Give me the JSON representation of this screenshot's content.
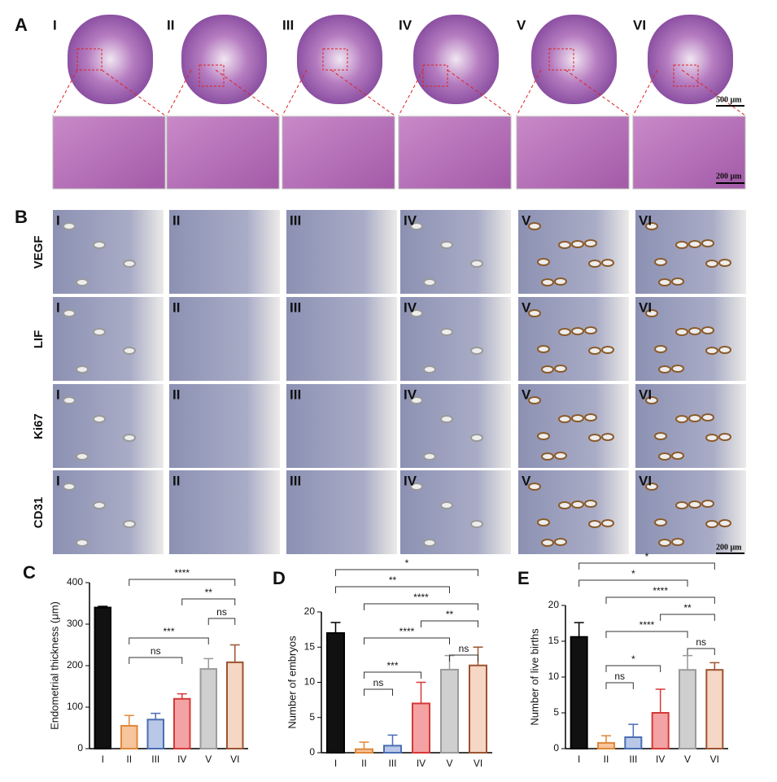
{
  "panel_a": {
    "label": "A",
    "groups": [
      "I",
      "II",
      "III",
      "IV",
      "V",
      "VI"
    ],
    "scale_top": "500 μm",
    "scale_bottom": "200 μm"
  },
  "panel_b": {
    "label": "B",
    "groups": [
      "I",
      "II",
      "III",
      "IV",
      "V",
      "VI"
    ],
    "stains": [
      "VEGF",
      "LIF",
      "Ki67",
      "CD31"
    ],
    "scale": "200 μm"
  },
  "chart_data": [
    {
      "type": "bar",
      "label": "C",
      "ylabel": "Endometrial thickness (μm)",
      "categories": [
        "I",
        "II",
        "III",
        "IV",
        "V",
        "VI"
      ],
      "values": [
        340,
        55,
        70,
        120,
        192,
        208
      ],
      "errors": [
        3,
        25,
        15,
        12,
        25,
        42
      ],
      "colors": [
        "#111111",
        "#f7c59c",
        "#b9c8e8",
        "#f3a3a3",
        "#cfcfcf",
        "#f6d6c4"
      ],
      "edgecolors": [
        "#000000",
        "#e0873a",
        "#4a6db3",
        "#d63838",
        "#9a9a9a",
        "#9c5330"
      ],
      "ylim": [
        0,
        400
      ],
      "yticks": [
        0,
        100,
        200,
        300,
        400
      ],
      "comparisons": [
        {
          "from": "II",
          "to": "VI",
          "label": "****"
        },
        {
          "from": "IV",
          "to": "VI",
          "label": "**"
        },
        {
          "from": "V",
          "to": "VI",
          "label": "ns"
        },
        {
          "from": "II",
          "to": "V",
          "label": "***"
        },
        {
          "from": "II",
          "to": "IV",
          "label": "ns"
        }
      ]
    },
    {
      "type": "bar",
      "label": "D",
      "ylabel": "Number of embryos",
      "categories": [
        "I",
        "II",
        "III",
        "IV",
        "V",
        "VI"
      ],
      "values": [
        17,
        0.5,
        1,
        7,
        11.8,
        12.4
      ],
      "errors": [
        1.5,
        1,
        1.5,
        3,
        2,
        2.6
      ],
      "colors": [
        "#111111",
        "#f7c59c",
        "#b9c8e8",
        "#f3a3a3",
        "#cfcfcf",
        "#f6d6c4"
      ],
      "edgecolors": [
        "#000000",
        "#e0873a",
        "#4a6db3",
        "#d63838",
        "#9a9a9a",
        "#9c5330"
      ],
      "ylim": [
        0,
        20
      ],
      "yticks": [
        0,
        5,
        10,
        15,
        20
      ],
      "comparisons": [
        {
          "from": "I",
          "to": "VI",
          "label": "*"
        },
        {
          "from": "I",
          "to": "V",
          "label": "**"
        },
        {
          "from": "II",
          "to": "VI",
          "label": "****"
        },
        {
          "from": "IV",
          "to": "VI",
          "label": "**"
        },
        {
          "from": "II",
          "to": "V",
          "label": "****"
        },
        {
          "from": "V",
          "to": "VI",
          "label": "ns"
        },
        {
          "from": "II",
          "to": "IV",
          "label": "***"
        },
        {
          "from": "II",
          "to": "III",
          "label": "ns"
        }
      ]
    },
    {
      "type": "bar",
      "label": "E",
      "ylabel": "Number of live births",
      "categories": [
        "I",
        "II",
        "III",
        "IV",
        "V",
        "VI"
      ],
      "values": [
        15.6,
        0.8,
        1.6,
        5,
        11,
        11
      ],
      "errors": [
        2,
        1,
        1.8,
        3.3,
        2,
        1
      ],
      "colors": [
        "#111111",
        "#f7c59c",
        "#b9c8e8",
        "#f3a3a3",
        "#cfcfcf",
        "#f6d6c4"
      ],
      "edgecolors": [
        "#000000",
        "#e0873a",
        "#4a6db3",
        "#d63838",
        "#9a9a9a",
        "#9c5330"
      ],
      "ylim": [
        0,
        20
      ],
      "yticks": [
        0,
        5,
        10,
        15,
        20
      ],
      "comparisons": [
        {
          "from": "I",
          "to": "VI",
          "label": "*"
        },
        {
          "from": "I",
          "to": "V",
          "label": "*"
        },
        {
          "from": "II",
          "to": "VI",
          "label": "****"
        },
        {
          "from": "IV",
          "to": "VI",
          "label": "**"
        },
        {
          "from": "II",
          "to": "V",
          "label": "****"
        },
        {
          "from": "V",
          "to": "VI",
          "label": "ns"
        },
        {
          "from": "II",
          "to": "IV",
          "label": "*"
        },
        {
          "from": "II",
          "to": "III",
          "label": "ns"
        }
      ]
    }
  ]
}
